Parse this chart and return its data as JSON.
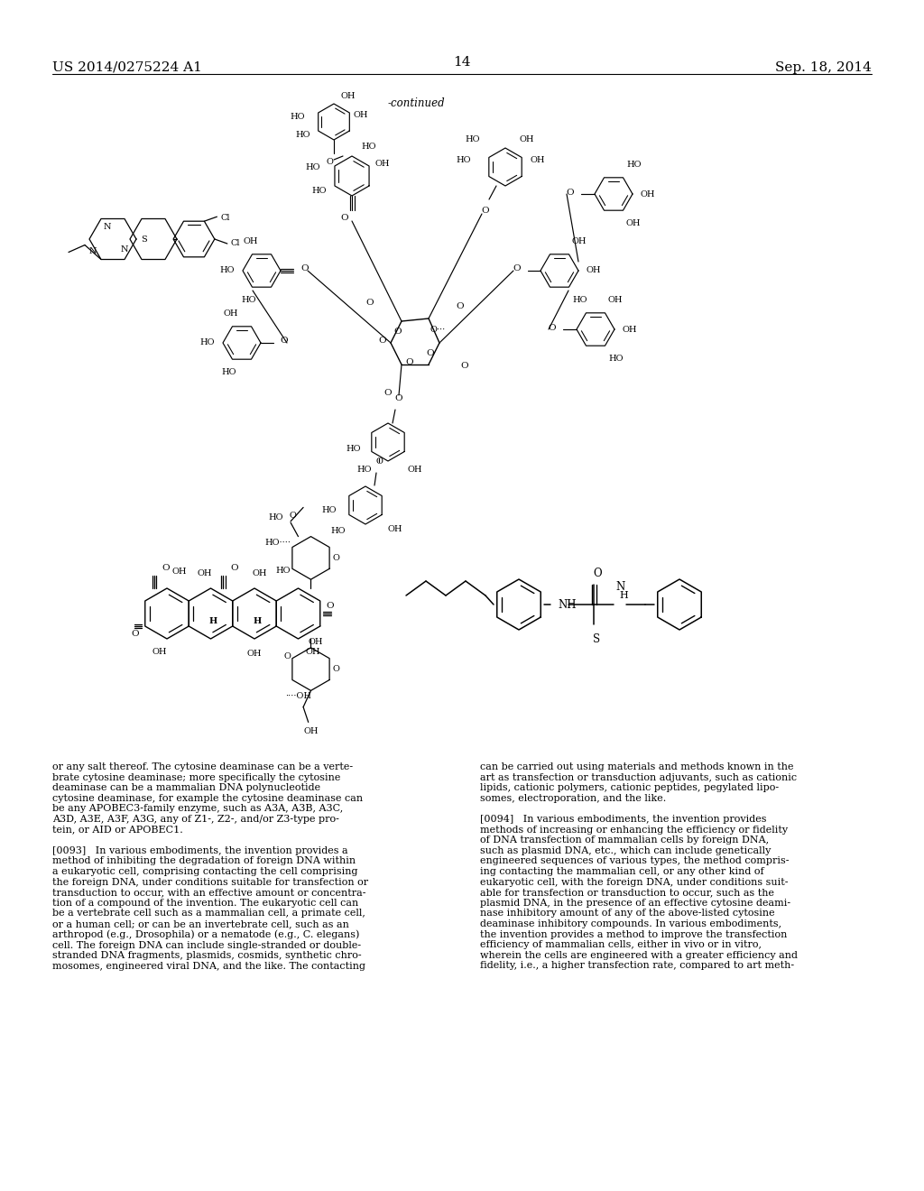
{
  "bg": "#ffffff",
  "header_left": "US 2014/0275224 A1",
  "header_right": "Sep. 18, 2014",
  "page_num": "14",
  "continued": "-continued",
  "col1_text": "or any salt thereof. The cytosine deaminase can be a verte-\nbrate cytosine deaminase; more specifically the cytosine\ndeaminase can be a mammalian DNA polynucleotide\ncytosine deaminase, for example the cytosine deaminase can\nbe any APOBEC3-family enzyme, such as A3A, A3B, A3C,\nA3D, A3E, A3F, A3G, any of Z1-, Z2-, and/or Z3-type pro-\ntein, or AID or APOBEC1.\n\n[0093]   In various embodiments, the invention provides a\nmethod of inhibiting the degradation of foreign DNA within\na eukaryotic cell, comprising contacting the cell comprising\nthe foreign DNA, under conditions suitable for transfection or\ntransduction to occur, with an effective amount or concentra-\ntion of a compound of the invention. The eukaryotic cell can\nbe a vertebrate cell such as a mammalian cell, a primate cell,\nor a human cell; or can be an invertebrate cell, such as an\narthropod (e.g., Drosophila) or a nematode (e.g., C. elegans)\ncell. The foreign DNA can include single-stranded or double-\nstranded DNA fragments, plasmids, cosmids, synthetic chro-\nmosomes, engineered viral DNA, and the like. The contacting",
  "col2_text": "can be carried out using materials and methods known in the\nart as transfection or transduction adjuvants, such as cationic\nlipids, cationic polymers, cationic peptides, pegylated lipo-\nsomes, electroporation, and the like.\n\n[0094]   In various embodiments, the invention provides\nmethods of increasing or enhancing the efficiency or fidelity\nof DNA transfection of mammalian cells by foreign DNA,\nsuch as plasmid DNA, etc., which can include genetically\nengineered sequences of various types, the method compris-\ning contacting the mammalian cell, or any other kind of\neukaryotic cell, with the foreign DNA, under conditions suit-\nable for transfection or transduction to occur, such as the\nplasmid DNA, in the presence of an effective cytosine deami-\nnase inhibitory amount of any of the above-listed cytosine\ndeaminase inhibitory compounds. In various embodiments,\nthe invention provides a method to improve the transfection\nefficiency of mammalian cells, either in vivo or in vitro,\nwherein the cells are engineered with a greater efficiency and\nfidelity, i.e., a higher transfection rate, compared to art meth-"
}
